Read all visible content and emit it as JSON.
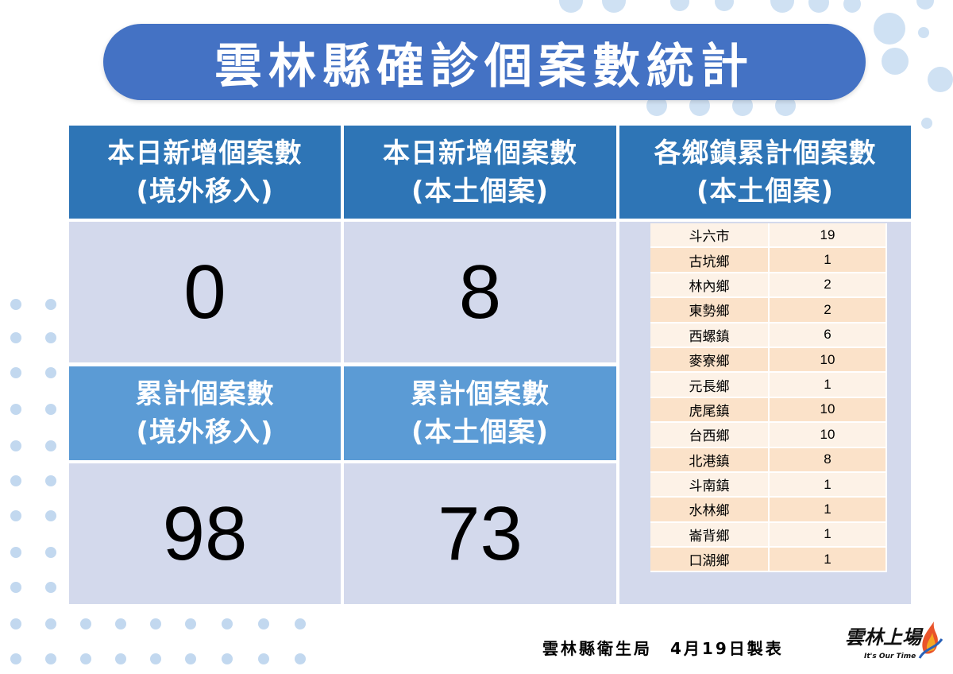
{
  "title": "雲林縣確診個案數統計",
  "headers": {
    "imported_today": [
      "本日新增個案數",
      "(境外移入)"
    ],
    "local_today": [
      "本日新增個案數",
      "(本土個案)"
    ],
    "towns": [
      "各鄉鎮累計個案數",
      "(本土個案)"
    ],
    "imported_total": [
      "累計個案數",
      "(境外移入)"
    ],
    "local_total": [
      "累計個案數",
      "(本土個案)"
    ]
  },
  "values": {
    "imported_today": "0",
    "local_today": "8",
    "imported_total": "98",
    "local_total": "73"
  },
  "towns": [
    {
      "name": "斗六市",
      "count": "19"
    },
    {
      "name": "古坑鄉",
      "count": "1"
    },
    {
      "name": "林內鄉",
      "count": "2"
    },
    {
      "name": "東勢鄉",
      "count": "2"
    },
    {
      "name": "西螺鎮",
      "count": "6"
    },
    {
      "name": "麥寮鄉",
      "count": "10"
    },
    {
      "name": "元長鄉",
      "count": "1"
    },
    {
      "name": "虎尾鎮",
      "count": "10"
    },
    {
      "name": "台西鄉",
      "count": "10"
    },
    {
      "name": "北港鎮",
      "count": "8"
    },
    {
      "name": "斗南鎮",
      "count": "1"
    },
    {
      "name": "水林鄉",
      "count": "1"
    },
    {
      "name": "崙背鄉",
      "count": "1"
    },
    {
      "name": "口湖鄉",
      "count": "1"
    }
  ],
  "footer": "雲林縣衛生局　4月19日製表",
  "logo": {
    "script_text": "雲林上場",
    "tagline": "It's Our Time"
  },
  "colors": {
    "title_bg": "#4472c4",
    "header_dark": "#2e75b6",
    "header_light": "#5b9bd5",
    "value_bg": "#d3d9ec",
    "row_light": "#fdf2e7",
    "row_dark": "#fbe2c9"
  }
}
